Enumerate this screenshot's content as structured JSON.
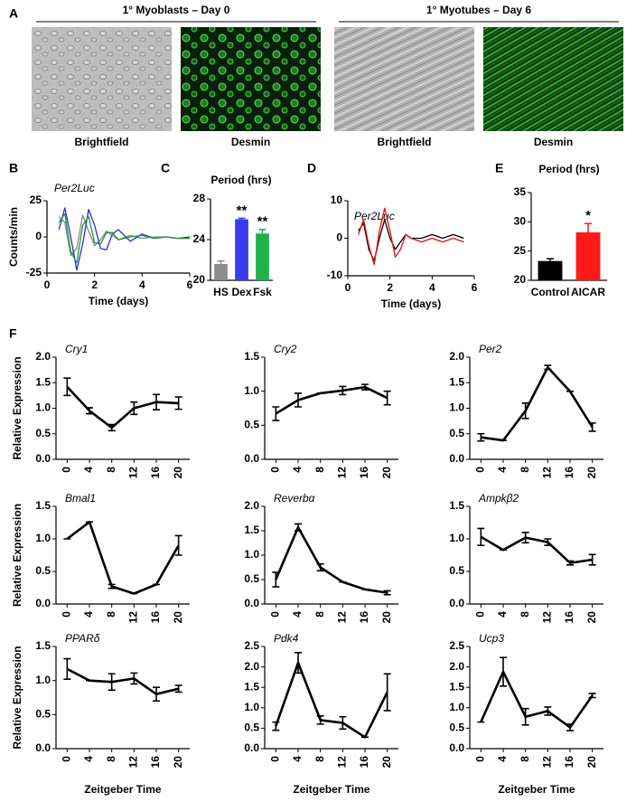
{
  "panel_a": {
    "label": "A",
    "groups": [
      {
        "title": "1° Myoblasts – Day 0",
        "images": [
          "Brightfield",
          "Desmin"
        ]
      },
      {
        "title": "1° Myotubes – Day 6",
        "images": [
          "Brightfield",
          "Desmin"
        ]
      }
    ]
  },
  "chart_data": [
    {
      "type": "line",
      "panel_label": "B",
      "title": "Per2Luc",
      "y_label": "Counts/min",
      "x_label": "Time (days)",
      "x": [
        0.5,
        0.75,
        1,
        1.25,
        1.5,
        1.75,
        2,
        2.25,
        2.5,
        2.75,
        3,
        3.5,
        4,
        4.5,
        5,
        5.5,
        6
      ],
      "series": [
        {
          "color": "#888888",
          "values": [
            14,
            10,
            -13,
            -8,
            15,
            4,
            -6,
            -2,
            4,
            1,
            -2,
            1,
            -1,
            0,
            0,
            -1,
            -1
          ]
        },
        {
          "color": "#2a2ae0",
          "values": [
            5,
            20,
            0,
            -23,
            -5,
            19,
            8,
            -8,
            -9,
            2,
            5,
            -3,
            2,
            -1,
            0,
            -1,
            0
          ]
        },
        {
          "color": "#1e9a2e",
          "values": [
            10,
            16,
            -10,
            -18,
            8,
            14,
            -4,
            -5,
            3,
            3,
            -2,
            0,
            1,
            -1,
            0,
            -1,
            -1
          ]
        }
      ],
      "xlim": [
        0,
        6
      ],
      "xticks": [
        0,
        2,
        4,
        6
      ],
      "ylim": [
        -25,
        25
      ],
      "yticks": [
        -25,
        0,
        25
      ]
    },
    {
      "type": "bar",
      "panel_label": "C",
      "title": "Period (hrs)",
      "categories": [
        "HS",
        "Dex",
        "Fsk"
      ],
      "values": [
        21.6,
        26,
        24.6
      ],
      "errors": [
        0.3,
        0.1,
        0.4
      ],
      "colors": [
        "#8c8c8c",
        "#3a3af0",
        "#1fb04a"
      ],
      "annotations": [
        null,
        "**",
        "**"
      ],
      "ylim": [
        20,
        28
      ],
      "yticks": [
        20,
        24,
        28
      ]
    },
    {
      "type": "line",
      "panel_label": "D",
      "title": "Per2Luc",
      "x_label": "Time (days)",
      "x": [
        0.5,
        0.75,
        1,
        1.25,
        1.5,
        1.75,
        2,
        2.25,
        2.5,
        2.75,
        3,
        3.5,
        4,
        4.5,
        5,
        5.5
      ],
      "series": [
        {
          "color": "#000000",
          "values": [
            2,
            4,
            -3,
            -6,
            0,
            5,
            0,
            -3,
            -1,
            1,
            0,
            0,
            1,
            0,
            1,
            0
          ]
        },
        {
          "color": "#e01010",
          "values": [
            1,
            5,
            -2,
            -7,
            2,
            8,
            2,
            -5,
            -3,
            1,
            0,
            -1,
            0,
            -1,
            0,
            -1
          ]
        }
      ],
      "xlim": [
        0,
        6
      ],
      "xticks": [
        0,
        2,
        4,
        6
      ],
      "ylim": [
        -10,
        10
      ],
      "yticks": [
        -10,
        0,
        10
      ]
    },
    {
      "type": "bar",
      "panel_label": "E",
      "title": "Period (hrs)",
      "categories": [
        "Control",
        "AICAR"
      ],
      "values": [
        23.3,
        28.2
      ],
      "errors": [
        0.4,
        1.5
      ],
      "colors": [
        "#000000",
        "#ff1a1a"
      ],
      "annotations": [
        null,
        "*"
      ],
      "ylim": [
        20,
        35
      ],
      "yticks": [
        20,
        25,
        30,
        35
      ]
    },
    {
      "type": "line",
      "panel_label": "F",
      "title": "Cry1",
      "y_label": "Relative Expression",
      "x": [
        0,
        4,
        8,
        12,
        16,
        20
      ],
      "series": [
        {
          "color": "#000000",
          "values": [
            1.42,
            0.95,
            0.62,
            1.0,
            1.12,
            1.1
          ],
          "errors": [
            0.17,
            0.06,
            0.06,
            0.12,
            0.15,
            0.12
          ]
        }
      ],
      "xlim": [
        -2,
        22
      ],
      "xticks": [
        0,
        4,
        8,
        12,
        16,
        20
      ],
      "ylim": [
        0,
        2
      ],
      "yticks": [
        {
          "value": 0,
          "label": "0.0"
        },
        0.5,
        {
          "value": 1,
          "label": "1.0"
        },
        1.5,
        {
          "value": 2,
          "label": "2.0"
        }
      ]
    },
    {
      "type": "line",
      "title": "Cry2",
      "x": [
        0,
        4,
        8,
        12,
        16,
        20
      ],
      "series": [
        {
          "color": "#000000",
          "values": [
            0.67,
            0.87,
            0.97,
            1.01,
            1.06,
            0.9
          ],
          "errors": [
            0.1,
            0.1,
            0,
            0.06,
            0.04,
            0.1
          ]
        }
      ],
      "xlim": [
        -2,
        22
      ],
      "xticks": [
        0,
        4,
        8,
        12,
        16,
        20
      ],
      "ylim": [
        0,
        1.5
      ],
      "yticks": [
        {
          "value": 0,
          "label": "0.0"
        },
        0.5,
        {
          "value": 1,
          "label": "1.0"
        },
        1.5
      ]
    },
    {
      "type": "line",
      "title": "Per2",
      "x": [
        0,
        4,
        8,
        12,
        16,
        20
      ],
      "series": [
        {
          "color": "#000000",
          "values": [
            0.43,
            0.37,
            0.95,
            1.8,
            1.33,
            0.63
          ],
          "errors": [
            0.07,
            0,
            0.15,
            0.04,
            0,
            0.08
          ]
        }
      ],
      "xlim": [
        -2,
        22
      ],
      "xticks": [
        0,
        4,
        8,
        12,
        16,
        20
      ],
      "ylim": [
        0,
        2
      ],
      "yticks": [
        {
          "value": 0,
          "label": "0.0"
        },
        0.5,
        {
          "value": 1,
          "label": "1.0"
        },
        1.5,
        {
          "value": 2,
          "label": "2.0"
        }
      ]
    },
    {
      "type": "line",
      "title": "Bmal1",
      "y_label": "Relative Expression",
      "x": [
        0,
        4,
        8,
        12,
        16,
        20
      ],
      "series": [
        {
          "color": "#000000",
          "values": [
            1.0,
            1.26,
            0.27,
            0.16,
            0.3,
            0.9
          ],
          "errors": [
            0,
            0,
            0.03,
            0,
            0,
            0.15
          ]
        }
      ],
      "xlim": [
        -2,
        22
      ],
      "xticks": [
        0,
        4,
        8,
        12,
        16,
        20
      ],
      "ylim": [
        0,
        1.5
      ],
      "yticks": [
        {
          "value": 0,
          "label": "0.0"
        },
        0.5,
        {
          "value": 1,
          "label": "1.0"
        },
        1.5
      ]
    },
    {
      "type": "line",
      "title": "Reverbα",
      "x": [
        0,
        4,
        8,
        12,
        16,
        20
      ],
      "series": [
        {
          "color": "#000000",
          "values": [
            0.5,
            1.57,
            0.75,
            0.45,
            0.3,
            0.23
          ],
          "errors": [
            0.15,
            0.07,
            0.07,
            0,
            0,
            0.04
          ]
        }
      ],
      "xlim": [
        -2,
        22
      ],
      "xticks": [
        0,
        4,
        8,
        12,
        16,
        20
      ],
      "ylim": [
        0,
        2
      ],
      "yticks": [
        {
          "value": 0,
          "label": "0.0"
        },
        0.5,
        {
          "value": 1,
          "label": "1.0"
        },
        1.5,
        {
          "value": 2,
          "label": "2.0"
        }
      ]
    },
    {
      "type": "line",
      "title": "Ampkβ2",
      "x": [
        0,
        4,
        8,
        12,
        16,
        20
      ],
      "series": [
        {
          "color": "#000000",
          "values": [
            1.03,
            0.83,
            1.02,
            0.95,
            0.63,
            0.68
          ],
          "errors": [
            0.13,
            0,
            0.08,
            0.05,
            0.03,
            0.08
          ]
        }
      ],
      "xlim": [
        -2,
        22
      ],
      "xticks": [
        0,
        4,
        8,
        12,
        16,
        20
      ],
      "ylim": [
        0,
        1.5
      ],
      "yticks": [
        {
          "value": 0,
          "label": "0.0"
        },
        0.5,
        {
          "value": 1,
          "label": "1.0"
        },
        1.5
      ]
    },
    {
      "type": "line",
      "title": "PPARδ",
      "y_label": "Relative Expression",
      "x_label": "Zeitgeber Time",
      "x": [
        0,
        4,
        8,
        12,
        16,
        20
      ],
      "series": [
        {
          "color": "#000000",
          "values": [
            1.17,
            1.0,
            0.98,
            1.03,
            0.8,
            0.88
          ],
          "errors": [
            0.15,
            0,
            0.12,
            0.08,
            0.1,
            0.05
          ]
        }
      ],
      "xlim": [
        -2,
        22
      ],
      "xticks": [
        0,
        4,
        8,
        12,
        16,
        20
      ],
      "ylim": [
        0,
        1.5
      ],
      "yticks": [
        {
          "value": 0,
          "label": "0.0"
        },
        0.5,
        {
          "value": 1,
          "label": "1.0"
        },
        1.5
      ]
    },
    {
      "type": "line",
      "title": "Pdk4",
      "x_label": "Zeitgeber Time",
      "x": [
        0,
        4,
        8,
        12,
        16,
        20
      ],
      "series": [
        {
          "color": "#000000",
          "values": [
            0.55,
            2.1,
            0.7,
            0.63,
            0.28,
            1.38
          ],
          "errors": [
            0.1,
            0.25,
            0.1,
            0.15,
            0,
            0.45
          ]
        }
      ],
      "xlim": [
        -2,
        22
      ],
      "xticks": [
        0,
        4,
        8,
        12,
        16,
        20
      ],
      "ylim": [
        0,
        2.5
      ],
      "yticks": [
        {
          "value": 0,
          "label": "0.0"
        },
        0.5,
        {
          "value": 1,
          "label": "1.0"
        },
        1.5,
        {
          "value": 2,
          "label": "2.0"
        },
        2.5
      ]
    },
    {
      "type": "line",
      "title": "Ucp3",
      "x_label": "Zeitgeber Time",
      "x": [
        0,
        4,
        8,
        12,
        16,
        20
      ],
      "series": [
        {
          "color": "#000000",
          "values": [
            0.65,
            1.88,
            0.78,
            0.92,
            0.52,
            1.3
          ],
          "errors": [
            0,
            0.35,
            0.2,
            0.1,
            0.08,
            0.05
          ]
        }
      ],
      "xlim": [
        -2,
        22
      ],
      "xticks": [
        0,
        4,
        8,
        12,
        16,
        20
      ],
      "ylim": [
        0,
        2.5
      ],
      "yticks": [
        {
          "value": 0,
          "label": "0.0"
        },
        0.5,
        {
          "value": 1,
          "label": "1.0"
        },
        1.5,
        {
          "value": 2,
          "label": "2.0"
        },
        2.5
      ]
    }
  ]
}
